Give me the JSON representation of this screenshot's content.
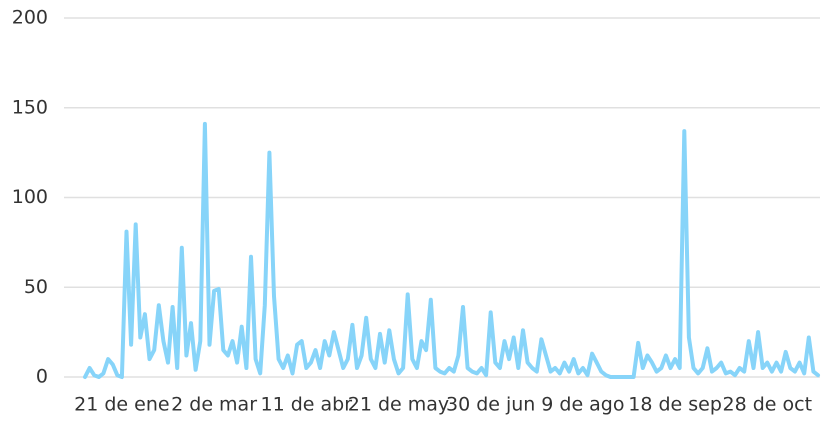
{
  "chart_data": {
    "type": "line",
    "categories": [
      null,
      null,
      null,
      null,
      null,
      null,
      null,
      null,
      "21 de ene",
      null,
      null,
      null,
      null,
      null,
      null,
      null,
      null,
      null,
      null,
      null,
      null,
      null,
      null,
      null,
      null,
      null,
      null,
      null,
      "2 de mar",
      null,
      null,
      null,
      null,
      null,
      null,
      null,
      null,
      null,
      null,
      null,
      null,
      null,
      null,
      null,
      null,
      null,
      null,
      null,
      "11 de abr",
      null,
      null,
      null,
      null,
      null,
      null,
      null,
      null,
      null,
      null,
      null,
      null,
      null,
      null,
      null,
      null,
      null,
      null,
      null,
      "21 de may",
      null,
      null,
      null,
      null,
      null,
      null,
      null,
      null,
      null,
      null,
      null,
      null,
      null,
      null,
      null,
      null,
      null,
      null,
      null,
      "30 de jun",
      null,
      null,
      null,
      null,
      null,
      null,
      null,
      null,
      null,
      null,
      null,
      null,
      null,
      null,
      null,
      null,
      null,
      null,
      null,
      "9 de ago",
      null,
      null,
      null,
      null,
      null,
      null,
      null,
      null,
      null,
      null,
      null,
      null,
      null,
      null,
      null,
      null,
      null,
      null,
      null,
      "18 de sep",
      null,
      null,
      null,
      null,
      null,
      null,
      null,
      null,
      null,
      null,
      null,
      null,
      null,
      null,
      null,
      null,
      null,
      null,
      null,
      "28 de oct",
      null,
      null,
      null,
      null,
      null,
      null,
      null,
      null,
      null,
      null,
      null
    ],
    "series": [
      {
        "color": "#87d4f9",
        "values": [
          0,
          5,
          1,
          0,
          2,
          10,
          7,
          1,
          0,
          81,
          18,
          85,
          22,
          35,
          10,
          15,
          40,
          20,
          8,
          39,
          5,
          72,
          12,
          30,
          4,
          20,
          141,
          18,
          48,
          49,
          15,
          12,
          20,
          8,
          28,
          5,
          67,
          10,
          2,
          40,
          125,
          45,
          10,
          5,
          12,
          2,
          18,
          20,
          5,
          8,
          15,
          5,
          20,
          12,
          25,
          15,
          5,
          10,
          29,
          5,
          12,
          33,
          10,
          5,
          24,
          8,
          26,
          10,
          2,
          5,
          46,
          10,
          5,
          20,
          15,
          43,
          5,
          3,
          2,
          5,
          3,
          12,
          39,
          5,
          3,
          2,
          5,
          1,
          36,
          8,
          5,
          20,
          10,
          22,
          5,
          26,
          8,
          5,
          3,
          21,
          12,
          3,
          5,
          2,
          8,
          3,
          10,
          2,
          5,
          1,
          13,
          8,
          3,
          1,
          0,
          0,
          0,
          0,
          0,
          0,
          19,
          5,
          12,
          8,
          3,
          5,
          12,
          5,
          10,
          5,
          137,
          22,
          5,
          2,
          5,
          16,
          3,
          5,
          8,
          2,
          3,
          1,
          5,
          3,
          20,
          5,
          25,
          5,
          8,
          3,
          8,
          3,
          14,
          5,
          3,
          8,
          2,
          22,
          3,
          1
        ]
      }
    ],
    "ylim": [
      0,
      200
    ],
    "yticks": [
      0,
      50,
      100,
      150,
      200
    ],
    "grid": true
  }
}
